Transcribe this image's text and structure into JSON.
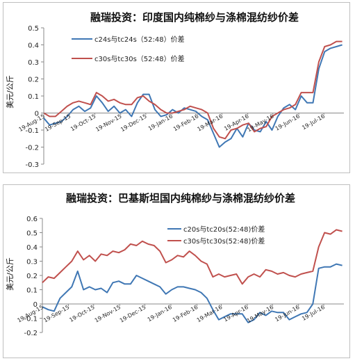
{
  "charts": [
    {
      "title": "融瑞投资：印度国内纯棉纱与涤棉混纺纱价差",
      "ylabel": "美元/公斤",
      "legend": [
        "c24s与tc24s（52:48）价差",
        "c30s与tc30s（52:48）价差"
      ]
    },
    {
      "title": "融瑞投资：巴基斯坦国内纯棉纱与涤棉混纺纱价差",
      "ylabel": "美元/公斤",
      "legend": [
        "c20s与tc20s(52:48)价差",
        "c30s与tc30s(52:48)价差"
      ]
    }
  ],
  "chart_data": [
    {
      "type": "line",
      "title": "融瑞投资：印度国内纯棉纱与涤棉混纺纱价差",
      "xlabel": "",
      "ylabel": "美元/公斤",
      "ylim": [
        -0.3,
        0.5
      ],
      "yticks": [
        -0.3,
        -0.2,
        -0.1,
        0,
        0.1,
        0.2,
        0.3,
        0.4,
        0.5
      ],
      "x_tick_labels": [
        "19-Aug-15",
        "19-Sep-15",
        "19-Oct-15",
        "19-Nov-15",
        "19-Dec-15",
        "19-Jan-16",
        "19-Feb-16",
        "19-Mar-16",
        "19-Apr-16",
        "19-May-16",
        "19-Jun-16",
        "19-Jul-16"
      ],
      "x_range": [
        "2015-08-19",
        "2016-08-12"
      ],
      "legend_position": "top-left",
      "series": [
        {
          "name": "c24s与tc24s（52:48）价差",
          "color": "#3f77b4",
          "x": [
            "2015-08-19",
            "2015-08-26",
            "2015-09-02",
            "2015-09-09",
            "2015-09-16",
            "2015-09-23",
            "2015-09-30",
            "2015-10-07",
            "2015-10-14",
            "2015-10-21",
            "2015-10-28",
            "2015-11-04",
            "2015-11-11",
            "2015-11-18",
            "2015-11-25",
            "2015-12-02",
            "2015-12-09",
            "2015-12-16",
            "2015-12-23",
            "2015-12-30",
            "2016-01-06",
            "2016-01-13",
            "2016-01-20",
            "2016-01-27",
            "2016-02-03",
            "2016-02-10",
            "2016-02-17",
            "2016-02-24",
            "2016-03-02",
            "2016-03-09",
            "2016-03-16",
            "2016-03-23",
            "2016-03-30",
            "2016-04-06",
            "2016-04-13",
            "2016-04-20",
            "2016-04-27",
            "2016-05-04",
            "2016-05-11",
            "2016-05-18",
            "2016-05-25",
            "2016-06-01",
            "2016-06-08",
            "2016-06-15",
            "2016-06-22",
            "2016-06-29",
            "2016-07-06",
            "2016-07-13",
            "2016-07-20",
            "2016-07-27",
            "2016-08-03",
            "2016-08-10"
          ],
          "values": [
            -0.03,
            -0.07,
            -0.06,
            -0.05,
            -0.02,
            0.02,
            0.04,
            0.01,
            0.03,
            0.1,
            0.06,
            0.01,
            0.04,
            0.0,
            0.02,
            -0.02,
            0.06,
            0.11,
            0.11,
            0.02,
            -0.02,
            -0.01,
            0.02,
            0.0,
            0.03,
            0.02,
            0.01,
            -0.02,
            -0.04,
            -0.12,
            -0.2,
            -0.17,
            -0.15,
            -0.09,
            -0.14,
            -0.06,
            -0.1,
            -0.11,
            -0.05,
            -0.1,
            -0.02,
            0.03,
            0.05,
            0.02,
            0.1,
            0.06,
            0.06,
            0.26,
            0.36,
            0.38,
            0.39,
            0.4
          ]
        },
        {
          "name": "c30s与tc30s（52:48）价差",
          "color": "#c0504d",
          "x": [
            "2015-08-19",
            "2015-08-26",
            "2015-09-02",
            "2015-09-09",
            "2015-09-16",
            "2015-09-23",
            "2015-09-30",
            "2015-10-07",
            "2015-10-14",
            "2015-10-21",
            "2015-10-28",
            "2015-11-04",
            "2015-11-11",
            "2015-11-18",
            "2015-11-25",
            "2015-12-02",
            "2015-12-09",
            "2015-12-16",
            "2015-12-23",
            "2015-12-30",
            "2016-01-06",
            "2016-01-13",
            "2016-01-20",
            "2016-01-27",
            "2016-02-03",
            "2016-02-10",
            "2016-02-17",
            "2016-02-24",
            "2016-03-02",
            "2016-03-09",
            "2016-03-16",
            "2016-03-23",
            "2016-03-30",
            "2016-04-06",
            "2016-04-13",
            "2016-04-20",
            "2016-04-27",
            "2016-05-04",
            "2016-05-11",
            "2016-05-18",
            "2016-05-25",
            "2016-06-01",
            "2016-06-08",
            "2016-06-15",
            "2016-06-22",
            "2016-06-29",
            "2016-07-06",
            "2016-07-13",
            "2016-07-20",
            "2016-07-27",
            "2016-08-03",
            "2016-08-10"
          ],
          "values": [
            0.0,
            -0.02,
            -0.02,
            0.01,
            0.04,
            0.06,
            0.07,
            0.06,
            0.05,
            0.12,
            0.1,
            0.07,
            0.08,
            0.06,
            0.05,
            0.05,
            0.09,
            0.1,
            0.07,
            0.05,
            0.02,
            0.0,
            0.0,
            0.01,
            0.02,
            0.04,
            0.03,
            0.02,
            0.0,
            -0.09,
            -0.14,
            -0.15,
            -0.1,
            -0.09,
            -0.07,
            -0.06,
            -0.11,
            -0.09,
            -0.08,
            -0.02,
            0.0,
            0.02,
            0.03,
            0.05,
            0.12,
            0.12,
            0.12,
            0.3,
            0.39,
            0.4,
            0.42,
            0.42
          ]
        }
      ]
    },
    {
      "type": "line",
      "title": "融瑞投资：巴基斯坦国内纯棉纱与涤棉混纺纱价差",
      "xlabel": "",
      "ylabel": "美元/公斤",
      "ylim": [
        -0.2,
        0.6
      ],
      "yticks": [
        -0.2,
        -0.1,
        0,
        0.1,
        0.2,
        0.3,
        0.4,
        0.5,
        0.6
      ],
      "x_tick_labels": [
        "19-Aug-15",
        "19-Sep-15",
        "19-Oct-15",
        "19-Nov-15",
        "19-Dec-15",
        "19-Jan-16",
        "19-Feb-16",
        "19-Mar-16",
        "19-Apr-16",
        "19-May-16",
        "19-Jun-16",
        "19-Jul-16"
      ],
      "x_range": [
        "2015-08-19",
        "2016-08-12"
      ],
      "legend_position": "top-right",
      "series": [
        {
          "name": "c20s与tc20s(52:48)价差",
          "color": "#3f77b4",
          "x": [
            "2015-08-19",
            "2015-08-26",
            "2015-09-02",
            "2015-09-09",
            "2015-09-16",
            "2015-09-23",
            "2015-09-30",
            "2015-10-07",
            "2015-10-14",
            "2015-10-21",
            "2015-10-28",
            "2015-11-04",
            "2015-11-11",
            "2015-11-18",
            "2015-11-25",
            "2015-12-02",
            "2015-12-09",
            "2015-12-16",
            "2015-12-23",
            "2015-12-30",
            "2016-01-06",
            "2016-01-13",
            "2016-01-20",
            "2016-01-27",
            "2016-02-03",
            "2016-02-10",
            "2016-02-17",
            "2016-02-24",
            "2016-03-02",
            "2016-03-09",
            "2016-03-16",
            "2016-03-23",
            "2016-03-30",
            "2016-04-06",
            "2016-04-13",
            "2016-04-20",
            "2016-04-27",
            "2016-05-04",
            "2016-05-11",
            "2016-05-18",
            "2016-05-25",
            "2016-06-01",
            "2016-06-08",
            "2016-06-15",
            "2016-06-22",
            "2016-06-29",
            "2016-07-06",
            "2016-07-13",
            "2016-07-20",
            "2016-07-27",
            "2016-08-03",
            "2016-08-10"
          ],
          "values": [
            -0.02,
            -0.04,
            -0.05,
            0.04,
            0.08,
            0.12,
            0.23,
            0.1,
            0.12,
            0.1,
            0.11,
            0.08,
            0.15,
            0.16,
            0.14,
            0.14,
            0.2,
            0.18,
            0.16,
            0.14,
            0.12,
            0.07,
            0.1,
            0.12,
            0.12,
            0.11,
            0.1,
            0.08,
            0.04,
            -0.04,
            -0.11,
            -0.09,
            -0.07,
            -0.07,
            -0.07,
            -0.13,
            -0.11,
            -0.06,
            -0.08,
            -0.05,
            -0.06,
            -0.06,
            -0.11,
            -0.09,
            -0.07,
            -0.06,
            0.0,
            0.25,
            0.26,
            0.26,
            0.28,
            0.27
          ]
        },
        {
          "name": "c30s与tc30s(52:48)价差",
          "color": "#c0504d",
          "x": [
            "2015-08-19",
            "2015-08-26",
            "2015-09-02",
            "2015-09-09",
            "2015-09-16",
            "2015-09-23",
            "2015-09-30",
            "2015-10-07",
            "2015-10-14",
            "2015-10-21",
            "2015-10-28",
            "2015-11-04",
            "2015-11-11",
            "2015-11-18",
            "2015-11-25",
            "2015-12-02",
            "2015-12-09",
            "2015-12-16",
            "2015-12-23",
            "2015-12-30",
            "2016-01-06",
            "2016-01-13",
            "2016-01-20",
            "2016-01-27",
            "2016-02-03",
            "2016-02-10",
            "2016-02-17",
            "2016-02-24",
            "2016-03-02",
            "2016-03-09",
            "2016-03-16",
            "2016-03-23",
            "2016-03-30",
            "2016-04-06",
            "2016-04-13",
            "2016-04-20",
            "2016-04-27",
            "2016-05-04",
            "2016-05-11",
            "2016-05-18",
            "2016-05-25",
            "2016-06-01",
            "2016-06-08",
            "2016-06-15",
            "2016-06-22",
            "2016-06-29",
            "2016-07-06",
            "2016-07-13",
            "2016-07-20",
            "2016-07-27",
            "2016-08-03",
            "2016-08-10"
          ],
          "values": [
            0.15,
            0.19,
            0.18,
            0.22,
            0.26,
            0.3,
            0.37,
            0.31,
            0.34,
            0.3,
            0.35,
            0.34,
            0.37,
            0.36,
            0.38,
            0.42,
            0.41,
            0.44,
            0.42,
            0.41,
            0.37,
            0.29,
            0.31,
            0.34,
            0.33,
            0.37,
            0.34,
            0.3,
            0.28,
            0.19,
            0.21,
            0.19,
            0.2,
            0.21,
            0.14,
            0.19,
            0.21,
            0.19,
            0.24,
            0.23,
            0.21,
            0.22,
            0.2,
            0.19,
            0.21,
            0.22,
            0.23,
            0.4,
            0.5,
            0.49,
            0.52,
            0.51
          ]
        }
      ]
    }
  ]
}
